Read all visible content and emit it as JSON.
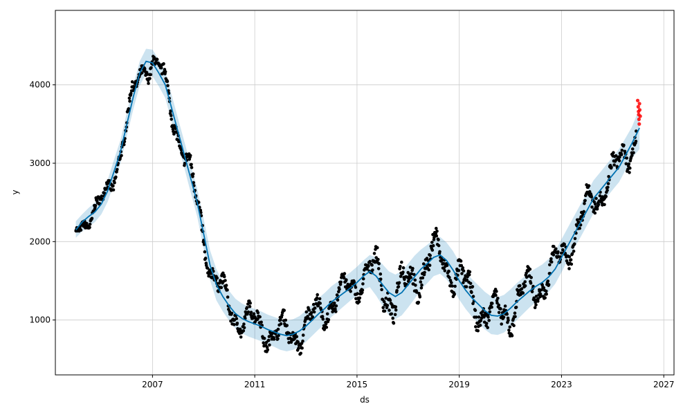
{
  "chart_data": {
    "type": "scatter",
    "xlabel": "ds",
    "ylabel": "y",
    "xlim": [
      2003.2,
      2027.4
    ],
    "ylim": [
      300,
      4950
    ],
    "x_ticks": [
      2007,
      2011,
      2015,
      2019,
      2023,
      2027
    ],
    "y_ticks": [
      1000,
      2000,
      3000,
      4000
    ],
    "grid": true,
    "colors": {
      "observed": "#000000",
      "forecast_line": "#0072B2",
      "interval": "#0072B2",
      "anomaly": "#ff0000"
    },
    "series": [
      {
        "x": [
          2004.0,
          2004.25,
          2004.5,
          2004.75,
          2005.0,
          2005.25,
          2005.5,
          2005.75,
          2006.0,
          2006.25,
          2006.5,
          2006.75,
          2007.0,
          2007.25,
          2007.5,
          2007.75,
          2008.0,
          2008.25,
          2008.5,
          2008.75,
          2009.0,
          2009.25,
          2009.5,
          2009.75,
          2010.0,
          2010.25,
          2010.5,
          2010.75,
          2011.0,
          2011.25,
          2011.5,
          2011.75,
          2012.0,
          2012.25,
          2012.5,
          2012.75,
          2013.0,
          2013.25,
          2013.5,
          2013.75,
          2014.0,
          2014.25,
          2014.5,
          2014.75,
          2015.0,
          2015.25,
          2015.5,
          2015.75,
          2016.0,
          2016.25,
          2016.5,
          2016.75,
          2017.0,
          2017.25,
          2017.5,
          2017.75,
          2018.0,
          2018.25,
          2018.5,
          2018.75,
          2019.0,
          2019.25,
          2019.5,
          2019.75,
          2020.0,
          2020.25,
          2020.5,
          2020.75,
          2021.0,
          2021.25,
          2021.5,
          2021.75,
          2022.0,
          2022.25,
          2022.5,
          2022.75,
          2023.0,
          2023.25,
          2023.5,
          2023.75,
          2024.0,
          2024.25,
          2024.5,
          2024.75,
          2025.0,
          2025.25,
          2025.5,
          2025.75,
          2026.05
        ],
        "yhat": [
          2150,
          2250,
          2320,
          2380,
          2480,
          2650,
          2900,
          3150,
          3500,
          3850,
          4150,
          4300,
          4280,
          4150,
          4000,
          3700,
          3400,
          3100,
          2800,
          2500,
          2100,
          1700,
          1450,
          1300,
          1180,
          1080,
          1020,
          980,
          950,
          920,
          880,
          850,
          820,
          800,
          820,
          860,
          920,
          1000,
          1080,
          1150,
          1230,
          1290,
          1350,
          1410,
          1480,
          1560,
          1620,
          1560,
          1450,
          1350,
          1300,
          1350,
          1450,
          1550,
          1650,
          1720,
          1800,
          1830,
          1760,
          1640,
          1500,
          1380,
          1280,
          1200,
          1120,
          1060,
          1050,
          1080,
          1150,
          1230,
          1300,
          1370,
          1430,
          1480,
          1550,
          1650,
          1800,
          1950,
          2100,
          2250,
          2400,
          2550,
          2650,
          2750,
          2850,
          2950,
          3100,
          3250,
          3450
        ],
        "yhat_lower": [
          2050,
          2130,
          2190,
          2250,
          2350,
          2510,
          2750,
          3000,
          3350,
          3690,
          3990,
          4140,
          4110,
          3980,
          3830,
          3530,
          3230,
          2930,
          2620,
          2320,
          1910,
          1510,
          1250,
          1110,
          990,
          890,
          830,
          790,
          760,
          730,
          690,
          660,
          620,
          600,
          620,
          660,
          720,
          800,
          880,
          950,
          1040,
          1110,
          1180,
          1250,
          1310,
          1390,
          1420,
          1310,
          1180,
          1060,
          1010,
          1060,
          1160,
          1270,
          1390,
          1470,
          1560,
          1590,
          1520,
          1400,
          1260,
          1140,
          1040,
          960,
          880,
          820,
          810,
          840,
          910,
          1000,
          1080,
          1160,
          1230,
          1290,
          1360,
          1460,
          1610,
          1770,
          1920,
          2060,
          2210,
          2360,
          2460,
          2560,
          2660,
          2760,
          2910,
          3060,
          3180
        ],
        "yhat_upper": [
          2260,
          2350,
          2430,
          2500,
          2600,
          2790,
          3050,
          3300,
          3650,
          4000,
          4300,
          4460,
          4450,
          4320,
          4170,
          3870,
          3570,
          3270,
          2970,
          2680,
          2290,
          1890,
          1650,
          1490,
          1370,
          1270,
          1210,
          1170,
          1140,
          1110,
          1070,
          1040,
          1010,
          990,
          1010,
          1050,
          1120,
          1200,
          1280,
          1350,
          1430,
          1490,
          1550,
          1610,
          1680,
          1760,
          1830,
          1800,
          1710,
          1620,
          1580,
          1620,
          1720,
          1820,
          1900,
          1960,
          2030,
          2060,
          1990,
          1880,
          1740,
          1620,
          1520,
          1440,
          1360,
          1300,
          1290,
          1320,
          1390,
          1470,
          1540,
          1610,
          1660,
          1710,
          1780,
          1880,
          2030,
          2180,
          2330,
          2480,
          2630,
          2780,
          2880,
          2980,
          3080,
          3180,
          3320,
          3460,
          3700
        ]
      }
    ],
    "anomalies": [
      {
        "x": 2025.98,
        "y": 3800
      },
      {
        "x": 2026.0,
        "y": 3720
      },
      {
        "x": 2026.01,
        "y": 3660
      },
      {
        "x": 2026.02,
        "y": 3620
      },
      {
        "x": 2026.03,
        "y": 3560
      },
      {
        "x": 2026.04,
        "y": 3500
      },
      {
        "x": 2026.05,
        "y": 3760
      },
      {
        "x": 2026.06,
        "y": 3680
      },
      {
        "x": 2026.08,
        "y": 3600
      }
    ]
  }
}
